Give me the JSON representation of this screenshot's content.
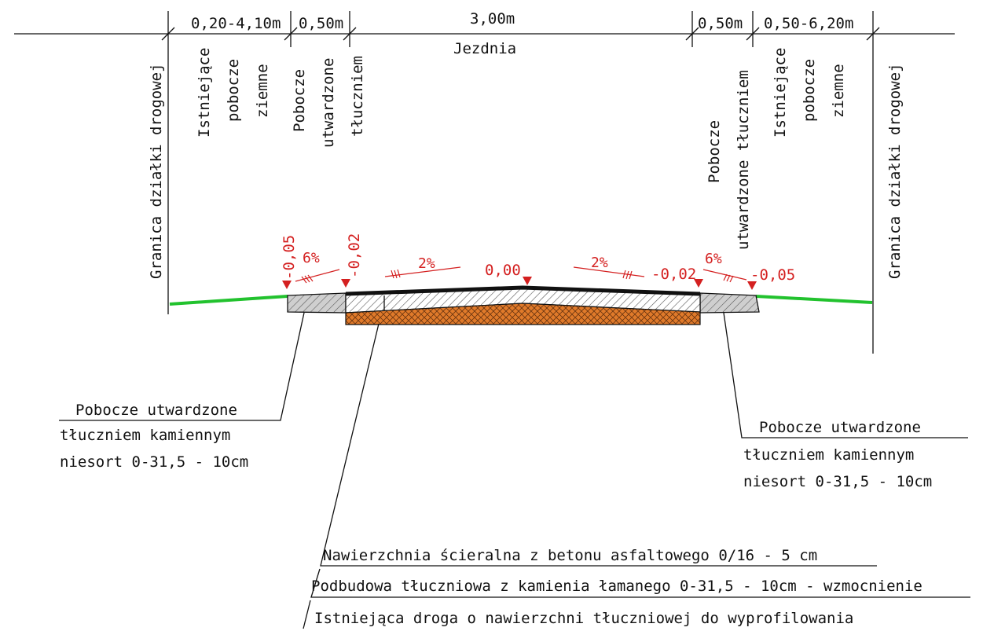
{
  "colors": {
    "line": "#111111",
    "elevation": "#d42020",
    "terrain": "#22c22e",
    "base_layer": "#e07a2a",
    "shoulder_fill": "#cfcfcf"
  },
  "top_dimensions": {
    "d1": "0,20-4,10m",
    "d2": "0,50m",
    "d3": "3,00m",
    "d4": "0,50m",
    "d5": "0,50-6,20m",
    "roadway": "Jezdnia"
  },
  "vertical_labels": {
    "boundary_left": "Granica działki drogowej",
    "existing_left": [
      "Istniejące",
      "pobocze",
      "ziemne"
    ],
    "shoulder_left": [
      "Pobocze",
      "utwardzone",
      "tłuczniem"
    ],
    "shoulder_right": [
      "Pobocze",
      "utwardzone tłuczniem"
    ],
    "existing_right": [
      "Istniejące",
      "pobocze",
      "ziemne"
    ],
    "boundary_right": "Granica działki drogowej"
  },
  "elevations": {
    "e1": "-0,05",
    "e2": "-0,02",
    "e3": "0,00",
    "e4": "-0,02",
    "e5": "-0,05"
  },
  "slopes": {
    "s1": "6%",
    "s2": "2%",
    "s3": "2%",
    "s4": "6%"
  },
  "callouts": {
    "left": [
      "Pobocze utwardzone",
      "tłuczniem kamiennym",
      "niesort 0-31,5 - 10cm"
    ],
    "right": [
      "Pobocze utwardzone",
      "tłuczniem kamiennym",
      "niesort 0-31,5 - 10cm"
    ]
  },
  "layers": [
    "Nawierzchnia ścieralna z betonu asfaltowego 0/16 - 5 cm",
    "Podbudowa tłuczniowa z kamienia łamanego 0-31,5 - 10cm - wzmocnienie",
    "Istniejąca droga o nawierzchni tłuczniowej do wyprofilowania"
  ]
}
